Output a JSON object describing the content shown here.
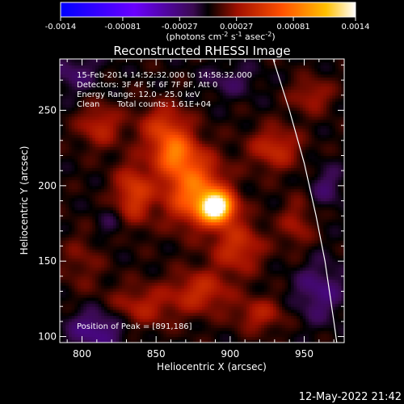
{
  "chart_data": {
    "type": "heatmap",
    "title": "Reconstructed RHESSI Image",
    "xlabel": "Heliocentric X (arcsec)",
    "ylabel": "Heliocentric Y (arcsec)",
    "xlim": [
      785,
      977
    ],
    "ylim": [
      96,
      284
    ],
    "x_ticks": [
      800,
      850,
      900,
      950
    ],
    "y_ticks": [
      100,
      150,
      200,
      250
    ],
    "colorbar": {
      "range": [
        -0.0014,
        0.0014
      ],
      "ticks": [
        "-0.0014",
        "-0.00081",
        "-0.00027",
        "0.00027",
        "0.00081",
        "0.0014"
      ],
      "unit_text": "(photons cm",
      "unit_exp1": "-2",
      "unit_mid": " s",
      "unit_exp2": "-1",
      "unit_mid2": " asec",
      "unit_exp3": "-2",
      "unit_end": ")"
    },
    "annotations": {
      "line1": "15-Feb-2014 14:52:32.000 to 14:58:32.000",
      "line2": "Detectors: 3F 4F 5F 6F 7F 8F, Att 0",
      "line3": "Energy Range: 12.0 - 25.0 keV",
      "line4_a": "Clean",
      "line4_b": "Total counts: 1.61E+04",
      "peak": "Position of Peak = [891,186]"
    },
    "peak": {
      "x": 891,
      "y": 186
    },
    "limb": [
      [
        929,
        284
      ],
      [
        940,
        250
      ],
      [
        950,
        215
      ],
      [
        958,
        180
      ],
      [
        964,
        150
      ],
      [
        970,
        110
      ],
      [
        972,
        96
      ]
    ],
    "blobs": [
      {
        "x": 891,
        "y": 186,
        "sx": 8,
        "sy": 7,
        "a": 1.0
      },
      {
        "x": 875,
        "y": 198,
        "sx": 14,
        "sy": 16,
        "a": 0.55
      },
      {
        "x": 862,
        "y": 222,
        "sx": 10,
        "sy": 9,
        "a": 0.45
      },
      {
        "x": 855,
        "y": 240,
        "sx": 12,
        "sy": 10,
        "a": 0.3
      },
      {
        "x": 835,
        "y": 195,
        "sx": 9,
        "sy": 14,
        "a": 0.35
      },
      {
        "x": 812,
        "y": 240,
        "sx": 10,
        "sy": 10,
        "a": 0.25
      },
      {
        "x": 905,
        "y": 160,
        "sx": 12,
        "sy": 12,
        "a": 0.3
      },
      {
        "x": 880,
        "y": 130,
        "sx": 14,
        "sy": 10,
        "a": 0.28
      },
      {
        "x": 840,
        "y": 120,
        "sx": 16,
        "sy": 10,
        "a": 0.22
      },
      {
        "x": 930,
        "y": 225,
        "sx": 12,
        "sy": 10,
        "a": 0.28
      },
      {
        "x": 945,
        "y": 175,
        "sx": 8,
        "sy": 12,
        "a": 0.18
      },
      {
        "x": 920,
        "y": 115,
        "sx": 12,
        "sy": 8,
        "a": 0.22
      },
      {
        "x": 800,
        "y": 150,
        "sx": 10,
        "sy": 14,
        "a": 0.12
      },
      {
        "x": 955,
        "y": 260,
        "sx": 10,
        "sy": 8,
        "a": 0.2
      }
    ],
    "troughs": [
      {
        "x": 810,
        "y": 105,
        "sx": 14,
        "sy": 10,
        "a": 0.25
      },
      {
        "x": 960,
        "y": 130,
        "sx": 12,
        "sy": 14,
        "a": 0.2
      },
      {
        "x": 795,
        "y": 275,
        "sx": 12,
        "sy": 10,
        "a": 0.15
      },
      {
        "x": 900,
        "y": 270,
        "sx": 14,
        "sy": 8,
        "a": 0.12
      },
      {
        "x": 965,
        "y": 200,
        "sx": 8,
        "sy": 10,
        "a": 0.15
      },
      {
        "x": 820,
        "y": 175,
        "sx": 8,
        "sy": 8,
        "a": 0.1
      }
    ]
  },
  "timestamp": "12-May-2022 21:42"
}
